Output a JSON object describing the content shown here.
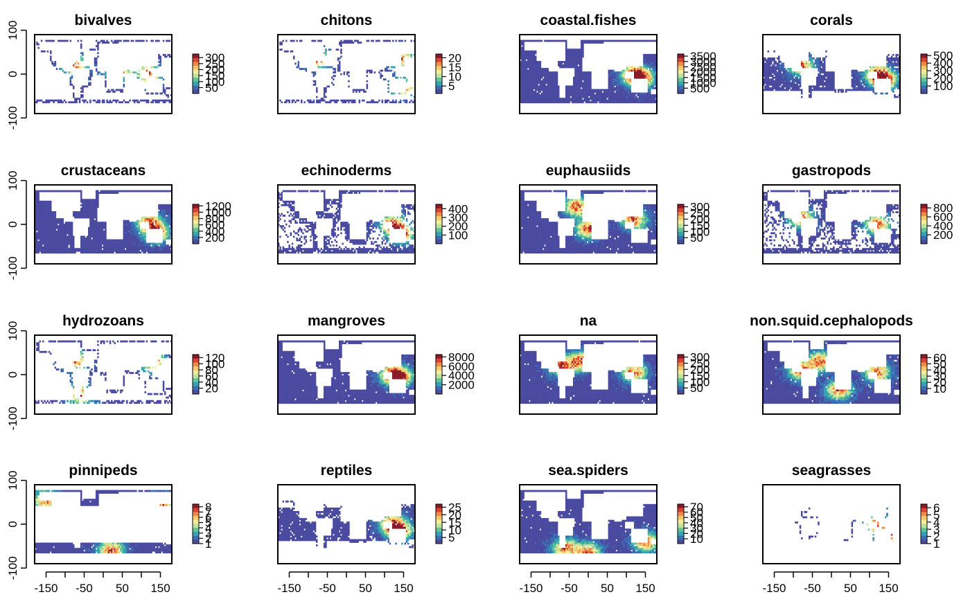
{
  "chart_data": {
    "type": "heatmap",
    "description_free": true,
    "axes": {
      "xticks": [
        -150,
        -50,
        50,
        150
      ],
      "xticks_minor": [
        -150,
        -100,
        -50,
        0,
        50,
        100,
        150
      ],
      "yticks": [
        -100,
        0,
        100
      ],
      "xlim": [
        -180,
        180
      ],
      "ylim": [
        -90,
        90
      ]
    },
    "colormap": [
      "#4a4aa0",
      "#3b6fb1",
      "#37a3b1",
      "#62c29a",
      "#bfe39a",
      "#f0ee9c",
      "#f7c86b",
      "#ee8b4a",
      "#d8432f",
      "#8b1a2b"
    ],
    "panels": [
      {
        "title": "bivalves",
        "ticks": [
          "300",
          "250",
          "200",
          "150",
          "100",
          "50"
        ],
        "min": 1,
        "max": 330,
        "coverage": "coast",
        "hot": [
          [
            120,
            0
          ],
          [
            -75,
            20
          ],
          [
            40,
            10
          ]
        ]
      },
      {
        "title": "chitons",
        "ticks": [
          "20",
          "15",
          "10",
          "5"
        ],
        "min": 1,
        "max": 22,
        "coverage": "coast",
        "hot": [
          [
            -75,
            35
          ],
          [
            140,
            35
          ],
          [
            150,
            -30
          ]
        ]
      },
      {
        "title": "coastal.fishes",
        "ticks": [
          "3500",
          "3000",
          "2500",
          "2000",
          "1500",
          "1000",
          "500"
        ],
        "min": 1,
        "max": 3700,
        "coverage": "ocean",
        "hot": [
          [
            120,
            0
          ],
          [
            140,
            -10
          ]
        ]
      },
      {
        "title": "corals",
        "ticks": [
          "500",
          "400",
          "300",
          "200",
          "100"
        ],
        "min": 1,
        "max": 520,
        "coverage": "tropics",
        "hot": [
          [
            120,
            0
          ],
          [
            140,
            -15
          ],
          [
            -80,
            20
          ]
        ]
      },
      {
        "title": "crustaceans",
        "ticks": [
          "1200",
          "1000",
          "800",
          "600",
          "400",
          "200"
        ],
        "min": 1,
        "max": 1250,
        "coverage": "ocean",
        "hot": [
          [
            120,
            5
          ],
          [
            140,
            -20
          ]
        ]
      },
      {
        "title": "echinoderms",
        "ticks": [
          "400",
          "300",
          "200",
          "100"
        ],
        "min": 1,
        "max": 450,
        "coverage": "shelf",
        "hot": [
          [
            120,
            0
          ],
          [
            145,
            -20
          ]
        ]
      },
      {
        "title": "euphausiids",
        "ticks": [
          "300",
          "250",
          "200",
          "150",
          "100",
          "50"
        ],
        "min": 1,
        "max": 320,
        "coverage": "ocean",
        "hot": [
          [
            -30,
            40
          ],
          [
            120,
            10
          ],
          [
            0,
            -10
          ]
        ]
      },
      {
        "title": "gastropods",
        "ticks": [
          "800",
          "600",
          "400",
          "200"
        ],
        "min": 1,
        "max": 880,
        "coverage": "shelf",
        "hot": [
          [
            120,
            0
          ],
          [
            -80,
            15
          ]
        ]
      },
      {
        "title": "hydrozoans",
        "ticks": [
          "120",
          "100",
          "80",
          "60",
          "40",
          "20"
        ],
        "min": 1,
        "max": 130,
        "coverage": "coast",
        "hot": [
          [
            -75,
            30
          ],
          [
            -60,
            -45
          ],
          [
            130,
            30
          ]
        ]
      },
      {
        "title": "mangroves",
        "ticks": [
          "8000",
          "6000",
          "4000",
          "2000"
        ],
        "min": 1,
        "max": 8500,
        "coverage": "ocean",
        "hot": [
          [
            120,
            0
          ],
          [
            140,
            -5
          ]
        ]
      },
      {
        "title": "na",
        "ticks": [
          "300",
          "250",
          "200",
          "150",
          "100",
          "50"
        ],
        "min": 1,
        "max": 320,
        "coverage": "ocean",
        "hot": [
          [
            120,
            5
          ],
          [
            -20,
            30
          ],
          [
            -70,
            20
          ]
        ]
      },
      {
        "title": "non.squid.cephalopods",
        "ticks": [
          "60",
          "50",
          "40",
          "30",
          "20",
          "10"
        ],
        "min": 1,
        "max": 65,
        "coverage": "ocean",
        "hot": [
          [
            120,
            5
          ],
          [
            -30,
            30
          ],
          [
            20,
            -35
          ],
          [
            -80,
            10
          ]
        ]
      },
      {
        "title": "pinnipeds",
        "ticks": [
          "8",
          "7",
          "6",
          "5",
          "4",
          "3",
          "2",
          "1"
        ],
        "min": 1,
        "max": 8.5,
        "coverage": "polar",
        "hot": [
          [
            -150,
            55
          ],
          [
            150,
            45
          ],
          [
            20,
            -60
          ]
        ]
      },
      {
        "title": "reptiles",
        "ticks": [
          "25",
          "20",
          "15",
          "10",
          "5"
        ],
        "min": 1,
        "max": 27,
        "coverage": "tropics",
        "hot": [
          [
            120,
            0
          ],
          [
            140,
            -15
          ]
        ]
      },
      {
        "title": "sea.spiders",
        "ticks": [
          "70",
          "60",
          "50",
          "40",
          "30",
          "20",
          "10"
        ],
        "min": 1,
        "max": 75,
        "coverage": "ocean",
        "hot": [
          [
            150,
            -40
          ],
          [
            -60,
            -55
          ],
          [
            0,
            -65
          ]
        ]
      },
      {
        "title": "seagrasses",
        "ticks": [
          "6",
          "5",
          "4",
          "3",
          "2",
          "1"
        ],
        "min": 1,
        "max": 6.5,
        "coverage": "sparse",
        "hot": [
          [
            120,
            0
          ],
          [
            150,
            -25
          ]
        ]
      }
    ]
  }
}
